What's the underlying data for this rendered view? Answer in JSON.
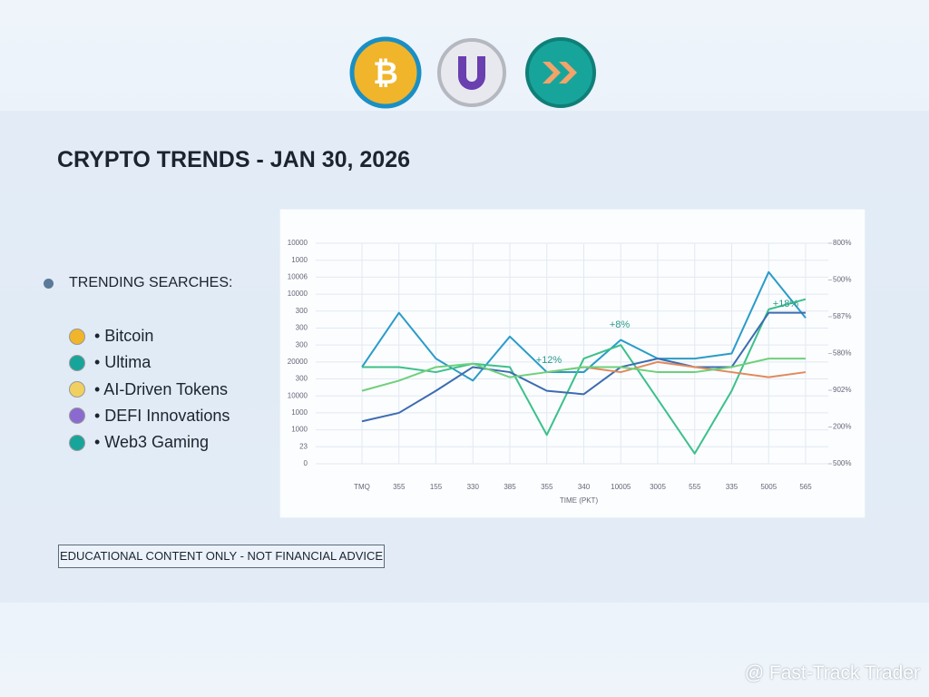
{
  "header": {
    "title": "CRYPTO TRENDS - JAN 30, 2026"
  },
  "trending": {
    "heading": "TRENDING SEARCHES:",
    "items": [
      "• Bitcoin",
      "• Ultima",
      "• AI-Driven Tokens",
      "• DEFI Innovations",
      "• Web3 Gaming"
    ]
  },
  "disclaimer": "EDUCATIONAL CONTENT ONLY - NOT FINANCIAL ADVICE",
  "watermark": "@ Fast-Track Trader",
  "chart_data": {
    "type": "line",
    "xlabel": "TIME (PKT)",
    "categories": [
      "TMQ",
      "355",
      "155",
      "330",
      "385",
      "355",
      "340",
      "10005",
      "3005",
      "555",
      "335",
      "5005",
      "565"
    ],
    "ylim": [
      0,
      13
    ],
    "yticks": [
      {
        "value": 0,
        "label": "0"
      },
      {
        "value": 1,
        "label": "23"
      },
      {
        "value": 2,
        "label": "1000"
      },
      {
        "value": 3,
        "label": "1000"
      },
      {
        "value": 4,
        "label": "10000"
      },
      {
        "value": 5,
        "label": "300"
      },
      {
        "value": 6,
        "label": "20000"
      },
      {
        "value": 7,
        "label": "300"
      },
      {
        "value": 8,
        "label": "300"
      },
      {
        "value": 9,
        "label": "300"
      },
      {
        "value": 10,
        "label": "10000"
      },
      {
        "value": 11,
        "label": "10006"
      },
      {
        "value": 12,
        "label": "1000"
      },
      {
        "value": 13,
        "label": "10000"
      }
    ],
    "y2lim": [
      0,
      6
    ],
    "y2ticks": [
      {
        "value": 0,
        "label": "500%"
      },
      {
        "value": 1,
        "label": "200%"
      },
      {
        "value": 2,
        "label": "902%"
      },
      {
        "value": 3,
        "label": "580%"
      },
      {
        "value": 4,
        "label": "587%"
      },
      {
        "value": 5,
        "label": "500%"
      },
      {
        "value": 6,
        "label": "800%"
      }
    ],
    "grid": true,
    "annotations": [
      "+12%",
      "+8%",
      "+18%"
    ],
    "series": [
      {
        "color": "#2a9cc8",
        "values": [
          5.7,
          8.9,
          6.2,
          4.9,
          7.5,
          5.4,
          5.4,
          7.3,
          6.2,
          6.2,
          6.5,
          11.3,
          8.6
        ]
      },
      {
        "color": "#3cc08a",
        "values": [
          5.7,
          5.7,
          5.4,
          5.9,
          5.7,
          1.7,
          6.2,
          7.0,
          3.8,
          0.6,
          4.3,
          9.1,
          9.7
        ]
      },
      {
        "color": "#3d6cb0",
        "values": [
          2.5,
          3.0,
          4.3,
          5.7,
          5.4,
          4.3,
          4.1,
          5.7,
          6.2,
          5.7,
          5.7,
          8.9,
          8.9
        ]
      },
      {
        "color": "#e08a5a",
        "values": [
          null,
          null,
          null,
          null,
          null,
          5.4,
          5.7,
          5.4,
          6.0,
          5.7,
          5.4,
          5.1,
          5.4
        ]
      },
      {
        "color": "#6fd07a",
        "values": [
          4.3,
          4.9,
          5.7,
          5.9,
          5.1,
          5.4,
          5.7,
          5.7,
          5.4,
          5.4,
          5.7,
          6.2,
          6.2
        ]
      }
    ]
  }
}
